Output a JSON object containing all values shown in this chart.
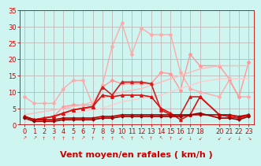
{
  "bg_color": "#cef5f0",
  "grid_color": "#c0b8b8",
  "xlabel": "Vent moyen/en rafales ( km/h )",
  "xlabel_color": "#cc0000",
  "xlabel_fontsize": 8,
  "ylim": [
    0,
    35
  ],
  "xlim": [
    -0.5,
    23.5
  ],
  "yticks": [
    0,
    5,
    10,
    15,
    20,
    25,
    30,
    35
  ],
  "xticks": [
    0,
    1,
    2,
    3,
    4,
    5,
    6,
    7,
    8,
    9,
    10,
    11,
    12,
    13,
    14,
    15,
    16,
    17,
    18,
    20,
    21,
    22,
    23
  ],
  "series": [
    {
      "comment": "light pink upper rafales line - goes up high",
      "x": [
        0,
        1,
        2,
        3,
        4,
        5,
        6,
        7,
        8,
        9,
        10,
        11,
        12,
        13,
        14,
        15,
        16,
        17,
        18,
        20,
        21,
        22,
        23
      ],
      "y": [
        8.5,
        6.5,
        6.5,
        6.5,
        11,
        13.5,
        13.5,
        6,
        12,
        24,
        31,
        21.5,
        29.5,
        27.5,
        27.5,
        27.5,
        16,
        11,
        10,
        8.5,
        13.5,
        8.5,
        8.5
      ],
      "color": "#ffaaaa",
      "lw": 1.0,
      "marker": "D",
      "ms": 2.0
    },
    {
      "comment": "medium pink - second gust line slightly lower",
      "x": [
        0,
        1,
        2,
        3,
        4,
        5,
        6,
        7,
        8,
        9,
        10,
        11,
        12,
        13,
        14,
        15,
        16,
        17,
        18,
        20,
        21,
        22,
        23
      ],
      "y": [
        2.5,
        1.5,
        2,
        2.5,
        5.5,
        6,
        6,
        6,
        11.5,
        13.5,
        12.5,
        12.5,
        12.5,
        12.5,
        16,
        15.5,
        10.5,
        21.5,
        18,
        18,
        14,
        8.5,
        19
      ],
      "color": "#ff9999",
      "lw": 1.0,
      "marker": "D",
      "ms": 2.0
    },
    {
      "comment": "pale pink diagonal rising trend line top",
      "x": [
        0,
        1,
        2,
        3,
        4,
        5,
        6,
        7,
        8,
        9,
        10,
        11,
        12,
        13,
        14,
        15,
        16,
        17,
        18,
        20,
        21,
        22,
        23
      ],
      "y": [
        3,
        3.5,
        4,
        4.5,
        5,
        5.5,
        6,
        7,
        8,
        9,
        10,
        10.5,
        11,
        12,
        13,
        14,
        15,
        16,
        17,
        18,
        18,
        18,
        18
      ],
      "color": "#ffbbbb",
      "lw": 1.0,
      "marker": "None",
      "ms": 0
    },
    {
      "comment": "pale pink diagonal rising trend line bottom",
      "x": [
        0,
        1,
        2,
        3,
        4,
        5,
        6,
        7,
        8,
        9,
        10,
        11,
        12,
        13,
        14,
        15,
        16,
        17,
        18,
        20,
        21,
        22,
        23
      ],
      "y": [
        1,
        1.5,
        2,
        2.5,
        3,
        3.5,
        4,
        4.5,
        5,
        6,
        7,
        7.5,
        8,
        8.5,
        9,
        10,
        11,
        12,
        13,
        14,
        14,
        14,
        14
      ],
      "color": "#ffcccc",
      "lw": 1.0,
      "marker": "None",
      "ms": 0
    },
    {
      "comment": "dark red - medium line with markers",
      "x": [
        0,
        1,
        2,
        3,
        4,
        5,
        6,
        7,
        8,
        9,
        10,
        11,
        12,
        13,
        14,
        15,
        16,
        17,
        18,
        20,
        21,
        22,
        23
      ],
      "y": [
        2.5,
        1.5,
        2,
        2.5,
        3.5,
        4.5,
        5,
        5.5,
        11.5,
        9,
        13,
        13,
        13,
        12.5,
        4.5,
        3,
        3,
        8.5,
        8.5,
        3,
        2.5,
        2,
        3
      ],
      "color": "#cc2222",
      "lw": 1.2,
      "marker": "^",
      "ms": 2.5
    },
    {
      "comment": "dark red lower - mean wind with markers",
      "x": [
        0,
        1,
        2,
        3,
        4,
        5,
        6,
        7,
        8,
        9,
        10,
        11,
        12,
        13,
        14,
        15,
        16,
        17,
        18,
        20,
        21,
        22,
        23
      ],
      "y": [
        2.5,
        1.5,
        2,
        2.5,
        3.5,
        4.5,
        5,
        5.5,
        9,
        8.5,
        9,
        9,
        9,
        8.5,
        5,
        3.5,
        1.5,
        3,
        8.5,
        3,
        2.5,
        2,
        3
      ],
      "color": "#dd1111",
      "lw": 1.2,
      "marker": "^",
      "ms": 2.5
    },
    {
      "comment": "dark red near flat bottom line 1",
      "x": [
        0,
        1,
        2,
        3,
        4,
        5,
        6,
        7,
        8,
        9,
        10,
        11,
        12,
        13,
        14,
        15,
        16,
        17,
        18,
        20,
        21,
        22,
        23
      ],
      "y": [
        2.5,
        1.5,
        1.5,
        1.5,
        2,
        2,
        2,
        2,
        2.5,
        2.5,
        3,
        3,
        3,
        3,
        3,
        3,
        3,
        3,
        3,
        3,
        3,
        2.5,
        3
      ],
      "color": "#bb0000",
      "lw": 1.2,
      "marker": "D",
      "ms": 1.5
    },
    {
      "comment": "darkest red near flat bottom line 2",
      "x": [
        0,
        1,
        2,
        3,
        4,
        5,
        6,
        7,
        8,
        9,
        10,
        11,
        12,
        13,
        14,
        15,
        16,
        17,
        18,
        20,
        21,
        22,
        23
      ],
      "y": [
        2,
        1,
        1,
        1,
        1.5,
        1.5,
        1.5,
        1.5,
        2,
        2,
        2.5,
        2.5,
        2.5,
        2.5,
        2.5,
        2.5,
        2.5,
        3,
        3.5,
        2,
        2,
        1.5,
        2.5
      ],
      "color": "#990000",
      "lw": 1.2,
      "marker": "D",
      "ms": 1.5
    }
  ],
  "tick_color": "#cc0000",
  "tick_fontsize": 6,
  "arrows": [
    "↗",
    "↗",
    "↑",
    "↑",
    "↑",
    "↑",
    "↗",
    "↑",
    "↑",
    "↑",
    "↖",
    "↑",
    "↖",
    "↑",
    "↖",
    "↑",
    "↙",
    "↓",
    "↙",
    "↙",
    "↙",
    "↓",
    "↘"
  ]
}
